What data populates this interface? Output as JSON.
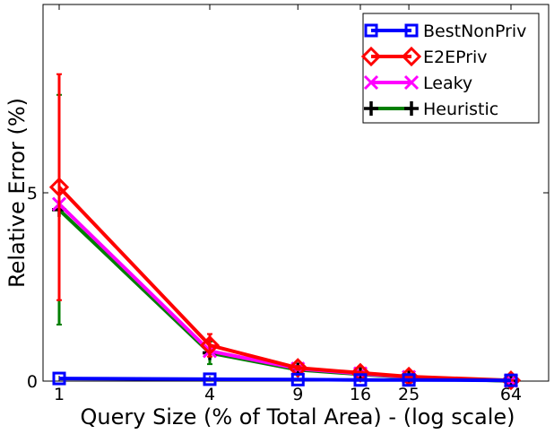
{
  "chart_data": {
    "type": "line",
    "xlabel": "Query Size (% of Total Area) - (log scale)",
    "ylabel": "Relative Error (%)",
    "x_scale": "log",
    "x": [
      1,
      4,
      9,
      16,
      25,
      64
    ],
    "x_tick_labels": [
      "1",
      "4",
      "9",
      "16",
      "25",
      "64"
    ],
    "y_ticks": [
      0,
      5
    ],
    "y_tick_labels": [
      "0",
      "5"
    ],
    "ylim": [
      0,
      10
    ],
    "grid": false,
    "legend_position": "top-right",
    "series": [
      {
        "name": "BestNonPriv",
        "color": "#0000ff",
        "marker": "square",
        "values": [
          0.07,
          0.05,
          0.04,
          0.03,
          0.03,
          0.02
        ],
        "error": [
          0,
          0,
          0,
          0,
          0,
          0
        ]
      },
      {
        "name": "E2EPriv",
        "color": "#ff0000",
        "marker": "diamond",
        "values": [
          5.15,
          0.95,
          0.35,
          0.22,
          0.12,
          0.02
        ],
        "error": [
          3.0,
          0.3,
          0.05,
          0.03,
          0.02,
          0.01
        ]
      },
      {
        "name": "Leaky",
        "color": "#ff00ff",
        "marker": "x",
        "values": [
          4.7,
          0.8,
          0.33,
          0.2,
          0.11,
          0.01
        ],
        "error": [
          0,
          0,
          0,
          0,
          0,
          0
        ]
      },
      {
        "name": "Heuristic",
        "color": "#007f00",
        "marker_color": "#000000",
        "marker": "plus",
        "values": [
          4.55,
          0.75,
          0.3,
          0.18,
          0.1,
          0.0
        ],
        "error": [
          3.05,
          0.3,
          0.05,
          0.03,
          0.02,
          0.01
        ]
      }
    ]
  }
}
